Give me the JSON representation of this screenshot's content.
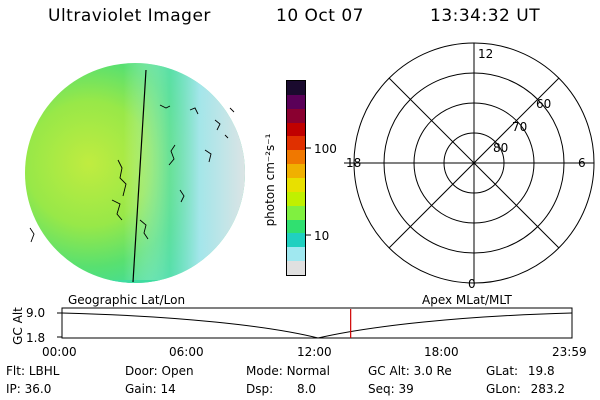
{
  "header": {
    "instrument": "Ultraviolet Imager",
    "date": "10 Oct 07",
    "time": "13:34:32 UT"
  },
  "colorbar": {
    "unit_label": "photon cm⁻²s⁻¹",
    "ticks": [
      "100",
      "10"
    ],
    "colors": [
      "#1a0a2e",
      "#5a0058",
      "#8a0030",
      "#c00000",
      "#e03000",
      "#f07800",
      "#f0b000",
      "#e8e000",
      "#c0f000",
      "#80f040",
      "#30e070",
      "#20d0c0",
      "#a0e8f0",
      "#e0e0e0"
    ]
  },
  "polar_plot": {
    "mlt_labels": {
      "top": "12",
      "left": "18",
      "right": "6",
      "bottom": "0"
    },
    "lat_labels": [
      "60",
      "70",
      "80"
    ]
  },
  "timeline": {
    "left_title": "Geographic Lat/Lon",
    "right_title": "Apex MLat/MLT",
    "axis_label": "GC Alt",
    "y_max": "9.0",
    "y_min": "1.8",
    "x_ticks": [
      "00:00",
      "06:00",
      "12:00",
      "18:00",
      "23:59"
    ],
    "marker_time_fraction": 0.566,
    "marker_color": "#d00000"
  },
  "info": {
    "filter_label": "Flt:",
    "filter_value": "LBHL",
    "door_label": "Door:",
    "door_value": "Open",
    "mode_label": "Mode:",
    "mode_value": "Normal",
    "gcalt_label": "GC Alt:",
    "gcalt_value": "3.0 Re",
    "glat_label": "GLat:",
    "glat_value": "19.8",
    "ip_label": "IP:",
    "ip_value": "36.0",
    "gain_label": "Gain:",
    "gain_value": "14",
    "dsp_label": "Dsp:",
    "dsp_value": "8.0",
    "seq_label": "Seq:",
    "seq_value": "39",
    "glon_label": "GLon:",
    "glon_value": "283.2"
  }
}
